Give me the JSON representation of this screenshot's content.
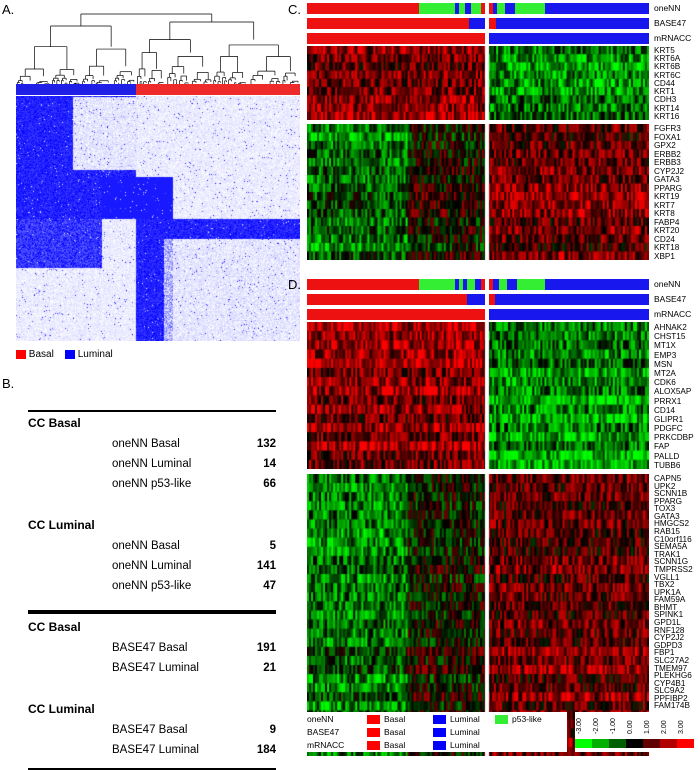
{
  "colors": {
    "basal": "#ff0000",
    "luminal": "#0000ff",
    "p53like": "#33ee33",
    "heat_high": "#ff0000",
    "heat_low": "#00ff00"
  },
  "panels": {
    "A": "A.",
    "B": "B.",
    "C": "C.",
    "D": "D."
  },
  "panelA": {
    "legend": [
      {
        "label": "Basal",
        "color": "#ff0000"
      },
      {
        "label": "Luminal",
        "color": "#0000ff"
      }
    ]
  },
  "panelB": {
    "sections": [
      {
        "heading": "CC Basal",
        "rows": [
          {
            "label": "oneNN Basal",
            "value": "132"
          },
          {
            "label": "oneNN Luminal",
            "value": "14"
          },
          {
            "label": "oneNN p53-like",
            "value": "66"
          }
        ]
      },
      {
        "heading": "CC Luminal",
        "rows": [
          {
            "label": "oneNN Basal",
            "value": "5"
          },
          {
            "label": "oneNN Luminal",
            "value": "141"
          },
          {
            "label": "oneNN p53-like",
            "value": "47"
          }
        ]
      },
      {
        "heading": "CC Basal",
        "rows": [
          {
            "label": "BASE47 Basal",
            "value": "191"
          },
          {
            "label": "BASE47 Luminal",
            "value": "21"
          }
        ]
      },
      {
        "heading": "CC Luminal",
        "rows": [
          {
            "label": "BASE47 Basal",
            "value": "9"
          },
          {
            "label": "BASE47 Luminal",
            "value": "184"
          }
        ]
      }
    ]
  },
  "panelC": {
    "bars": [
      "oneNN",
      "BASE47",
      "mRNACC"
    ],
    "genes_top": [
      "KRT5",
      "KRT6A",
      "KRT6B",
      "KRT6C",
      "CD44",
      "KRT1",
      "CDH3",
      "KRT14",
      "KRT16"
    ],
    "genes_bottom": [
      "FGFR3",
      "FOXA1",
      "GPX2",
      "ERBB2",
      "ERBB3",
      "CYP2J2",
      "GATA3",
      "PPARG",
      "KRT19",
      "KRT7",
      "KRT8",
      "FABP4",
      "KRT20",
      "CD24",
      "KRT18",
      "XBP1"
    ]
  },
  "panelD": {
    "bars": [
      "oneNN",
      "BASE47",
      "mRNACC"
    ],
    "genes_top": [
      "AHNAK2",
      "CHST15",
      "MT1X",
      "EMP3",
      "MSN",
      "MT2A",
      "CDK6",
      "ALOX5AP",
      "PRRX1",
      "CD14",
      "GLIPR1",
      "PDGFC",
      "PRKCDBP",
      "FAP",
      "PALLD",
      "TUBB6"
    ],
    "genes_bottom": [
      "CAPN5",
      "UPK2",
      "SCNN1B",
      "PPARG",
      "TOX3",
      "GATA3",
      "HMGCS2",
      "RAB15",
      "C10orf116",
      "SEMA5A",
      "TRAK1",
      "SCNN1G",
      "TMPRSS2",
      "VGLL1",
      "TBX2",
      "UPK1A",
      "FAM59A",
      "BHMT",
      "SPINK1",
      "GPD1L",
      "RNF128",
      "CYP2J2",
      "GDPD3",
      "FBP1",
      "SLC27A2",
      "TMEM97",
      "PLEKHG6",
      "CYP4B1",
      "SLC9A2",
      "PPFIBP2",
      "FAM174B"
    ],
    "legend_rows": [
      {
        "name": "oneNN",
        "items": [
          {
            "label": "Basal",
            "color": "#ff0000"
          },
          {
            "label": "Luminal",
            "color": "#0000ff"
          },
          {
            "label": "p53-like",
            "color": "#33ee33"
          }
        ]
      },
      {
        "name": "BASE47",
        "items": [
          {
            "label": "Basal",
            "color": "#ff0000"
          },
          {
            "label": "Luminal",
            "color": "#0000ff"
          }
        ]
      },
      {
        "name": "mRNACC",
        "items": [
          {
            "label": "Basal",
            "color": "#ff0000"
          },
          {
            "label": "Luminal",
            "color": "#0000ff"
          }
        ]
      }
    ],
    "scale_ticks": [
      "-3.00",
      "-2.00",
      "-1.00",
      "0.00",
      "1.00",
      "2.00",
      "3.00"
    ]
  }
}
